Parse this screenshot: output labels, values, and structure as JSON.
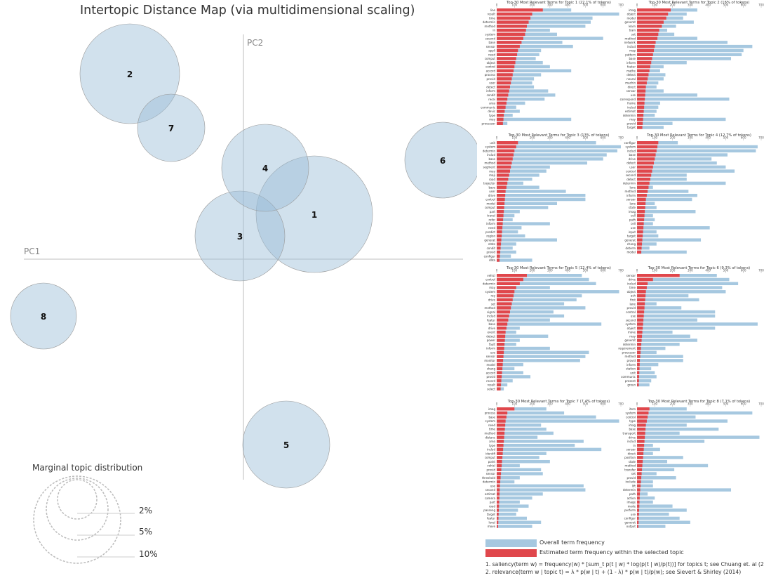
{
  "mds": {
    "title": "Intertopic Distance Map (via multidimensional scaling)",
    "pc1_label": "PC1",
    "pc2_label": "PC2",
    "marginal_title": "Marginal topic distribution",
    "marginal_levels": [
      "2%",
      "5%",
      "10%"
    ]
  },
  "chart_data": [
    {
      "type": "scatter",
      "title": "Intertopic Distance Map (via multidimensional scaling)",
      "xlabel": "PC1",
      "ylabel": "PC2",
      "topics": [
        {
          "label": "1",
          "share_pct": 22.1
        },
        {
          "label": "2",
          "share_pct": 16
        },
        {
          "label": "3",
          "share_pct": 13
        },
        {
          "label": "4",
          "share_pct": 12.7
        },
        {
          "label": "5",
          "share_pct": 12.4
        },
        {
          "label": "6",
          "share_pct": 9.3
        },
        {
          "label": "7",
          "share_pct": 7.4
        },
        {
          "label": "8",
          "share_pct": 7.1
        }
      ]
    },
    {
      "type": "bar",
      "orientation": "horizontal",
      "title": "Top-30 Most Relevant Terms for Topic 1 (22.1% of tokens)",
      "xlim": [
        0,
        700
      ],
      "xticks": [
        0,
        100,
        200,
        300,
        400,
        500,
        600,
        700
      ],
      "terms": [
        "line",
        "result",
        "time",
        "determin",
        "method",
        "in",
        "system",
        "second",
        "base",
        "sensor",
        "appli",
        "need",
        "comput",
        "object",
        "control",
        "accord",
        "process",
        "provid",
        "user",
        "detect",
        "inform",
        "condit",
        "recei",
        "area",
        "communic",
        "devic",
        "type",
        "may",
        "processor"
      ],
      "overall": [
        420,
        690,
        540,
        530,
        500,
        300,
        340,
        600,
        370,
        430,
        250,
        240,
        220,
        260,
        300,
        420,
        250,
        210,
        200,
        210,
        290,
        330,
        270,
        160,
        110,
        130,
        90,
        420,
        60
      ],
      "estimated": [
        260,
        200,
        190,
        180,
        170,
        165,
        160,
        150,
        140,
        130,
        120,
        115,
        110,
        105,
        100,
        95,
        90,
        85,
        80,
        75,
        70,
        65,
        60,
        55,
        50,
        45,
        40,
        38,
        35
      ]
    },
    {
      "type": "bar",
      "orientation": "horizontal",
      "title": "Top-30 Most Relevant Terms for Topic 2 (16% of tokens)",
      "xlim": [
        0,
        700
      ],
      "xticks": [
        0,
        100,
        200,
        300,
        400,
        500,
        600,
        700
      ],
      "terms": [
        "imag",
        "object",
        "model",
        "generat",
        "learn",
        "train",
        "set",
        "method",
        "network",
        "includ",
        "map",
        "pattern",
        "base",
        "inform",
        "featur",
        "mathe",
        "detect",
        "neural",
        "machin",
        "direct",
        "sensor",
        "use",
        "correspond",
        "frame",
        "includ",
        "estimat",
        "determin",
        "may",
        "provid",
        "target"
      ],
      "overall": [
        340,
        280,
        260,
        320,
        220,
        170,
        210,
        340,
        510,
        650,
        600,
        590,
        530,
        280,
        150,
        130,
        160,
        150,
        120,
        110,
        150,
        340,
        520,
        130,
        120,
        110,
        100,
        500,
        200,
        150
      ],
      "estimated": [
        190,
        175,
        165,
        150,
        140,
        125,
        120,
        115,
        105,
        100,
        95,
        90,
        85,
        80,
        75,
        70,
        65,
        60,
        55,
        50,
        48,
        46,
        44,
        42,
        40,
        38,
        36,
        34,
        32,
        30
      ]
    },
    {
      "type": "bar",
      "orientation": "horizontal",
      "title": "Top-30 Most Relevant Terms for Topic 3 (13% of tokens)",
      "xlim": [
        0,
        700
      ],
      "xticks": [
        0,
        100,
        200,
        300,
        400,
        500,
        600,
        700
      ],
      "terms": [
        "unit",
        "system",
        "determin",
        "includ",
        "base",
        "method",
        "segment",
        "may",
        "map",
        "road",
        "trajector",
        "base",
        "user",
        "drive",
        "control",
        "model",
        "comput",
        "part",
        "travel",
        "refer",
        "inform",
        "need",
        "predict",
        "region",
        "generat",
        "state",
        "condit",
        "provid",
        "configur",
        "data"
      ],
      "overall": [
        560,
        700,
        680,
        620,
        600,
        510,
        300,
        280,
        240,
        200,
        150,
        240,
        390,
        500,
        500,
        340,
        290,
        130,
        100,
        90,
        300,
        140,
        120,
        160,
        340,
        110,
        90,
        110,
        80,
        200
      ],
      "estimated": [
        120,
        110,
        100,
        95,
        90,
        85,
        80,
        75,
        70,
        65,
        60,
        55,
        50,
        48,
        46,
        44,
        42,
        40,
        38,
        36,
        34,
        32,
        30,
        28,
        26,
        24,
        22,
        20,
        18,
        16
      ]
    },
    {
      "type": "bar",
      "orientation": "horizontal",
      "title": "Top-30 Most Relevant Terms for Topic 4 (12.7% of tokens)",
      "xlim": [
        0,
        700
      ],
      "xticks": [
        0,
        100,
        200,
        300,
        400,
        500,
        600,
        700
      ],
      "terms": [
        "configur",
        "system",
        "includ",
        "base",
        "drive",
        "detect",
        "user",
        "control",
        "second",
        "detect",
        "determin",
        "lane",
        "method",
        "inform",
        "sensor",
        "lane",
        "state",
        "imag",
        "cell",
        "path",
        "cell",
        "use",
        "input",
        "target",
        "generat",
        "chang",
        "determ",
        "model"
      ],
      "overall": [
        230,
        680,
        670,
        510,
        420,
        450,
        500,
        550,
        280,
        280,
        500,
        90,
        290,
        340,
        310,
        100,
        110,
        330,
        90,
        100,
        90,
        410,
        110,
        120,
        360,
        110,
        70,
        280
      ],
      "estimated": [
        120,
        115,
        110,
        105,
        100,
        95,
        90,
        85,
        80,
        75,
        70,
        65,
        60,
        55,
        50,
        48,
        46,
        44,
        42,
        40,
        38,
        36,
        34,
        32,
        30,
        28,
        26,
        24
      ]
    },
    {
      "type": "bar",
      "orientation": "horizontal",
      "title": "Top-30 Most Relevant Terms for Topic 5 (12.4% of tokens)",
      "xlim": [
        0,
        700
      ],
      "xticks": [
        0,
        100,
        200,
        300,
        400,
        500,
        600,
        700
      ],
      "terms": [
        "vehicl",
        "control",
        "determin",
        "may",
        "system",
        "ray",
        "drive",
        "set",
        "method",
        "signal",
        "includ",
        "featur",
        "base",
        "drive",
        "event",
        "detect",
        "power",
        "fault",
        "inform",
        "use",
        "sensor",
        "monitor",
        "model",
        "chang",
        "accord",
        "provid",
        "record",
        "result",
        "select"
      ],
      "overall": [
        480,
        520,
        560,
        300,
        690,
        480,
        450,
        380,
        500,
        320,
        380,
        300,
        590,
        130,
        110,
        290,
        130,
        110,
        300,
        520,
        500,
        470,
        150,
        100,
        150,
        190,
        90,
        60,
        40
      ],
      "estimated": [
        170,
        150,
        130,
        110,
        100,
        95,
        90,
        85,
        80,
        75,
        70,
        65,
        60,
        55,
        50,
        48,
        46,
        44,
        42,
        40,
        38,
        36,
        34,
        32,
        30,
        28,
        26,
        24,
        22
      ]
    },
    {
      "type": "bar",
      "orientation": "horizontal",
      "title": "Top-30 Most Relevant Terms for Topic 6 (9.3% of tokens)",
      "xlim": [
        0,
        700
      ],
      "xticks": [
        0,
        100,
        200,
        300,
        400,
        500,
        600,
        700
      ],
      "terms": [
        "sensor",
        "drive",
        "includ",
        "time",
        "object",
        "ash",
        "first",
        "lane",
        "provid",
        "control",
        "use",
        "second",
        "system",
        "object",
        "move",
        "may",
        "generat",
        "determin",
        "requirement",
        "processor",
        "method",
        "provid",
        "inform",
        "station",
        "unit",
        "communic",
        "present",
        "groun"
      ],
      "overall": [
        450,
        520,
        570,
        480,
        500,
        290,
        350,
        110,
        250,
        440,
        440,
        340,
        680,
        440,
        200,
        300,
        340,
        240,
        160,
        110,
        260,
        260,
        120,
        80,
        100,
        110,
        80,
        70
      ],
      "estimated": [
        240,
        90,
        60,
        55,
        50,
        48,
        46,
        44,
        42,
        40,
        38,
        36,
        34,
        32,
        30,
        28,
        26,
        24,
        22,
        20,
        18,
        16,
        15,
        14,
        13,
        12,
        11,
        10
      ]
    },
    {
      "type": "bar",
      "orientation": "horizontal",
      "title": "Top-30 Most Relevant Terms for Topic 7 (7.4% of tokens)",
      "xlim": [
        0,
        700
      ],
      "xticks": [
        0,
        100,
        200,
        300,
        400,
        500,
        600,
        700
      ],
      "terms": [
        "imag",
        "process",
        "base",
        "system",
        "need",
        "time",
        "method",
        "distanc",
        "area",
        "type",
        "includ",
        "identifi",
        "comput",
        "point",
        "vehicl",
        "provid",
        "sensor",
        "threshold",
        "determin",
        "use",
        "second",
        "estimat",
        "camera",
        "part",
        "road",
        "passeng",
        "target",
        "featur",
        "level",
        "move"
      ],
      "overall": [
        280,
        380,
        560,
        690,
        250,
        280,
        320,
        230,
        490,
        440,
        590,
        280,
        240,
        300,
        130,
        250,
        260,
        130,
        100,
        490,
        500,
        260,
        200,
        130,
        180,
        120,
        110,
        170,
        250,
        200
      ],
      "estimated": [
        100,
        60,
        55,
        50,
        48,
        46,
        44,
        42,
        40,
        38,
        36,
        34,
        32,
        30,
        28,
        26,
        24,
        22,
        20,
        18,
        17,
        16,
        15,
        14,
        13,
        12,
        11,
        10,
        9,
        8
      ]
    },
    {
      "type": "bar",
      "orientation": "horizontal",
      "title": "Top-30 Most Relevant Terms for Topic 8 (7.1% of tokens)",
      "xlim": [
        0,
        700
      ],
      "xticks": [
        0,
        100,
        200,
        300,
        400,
        500,
        600,
        700
      ],
      "terms": [
        "item",
        "system",
        "control",
        "type",
        "imag",
        "base",
        "transport",
        "drive",
        "includ",
        "in",
        "sensor",
        "direct",
        "position",
        "state",
        "method",
        "transfer",
        "set",
        "provid",
        "include",
        "lift",
        "determin",
        "path",
        "action",
        "image",
        "mode",
        "perform",
        "use",
        "configur",
        "generat",
        "output"
      ],
      "overall": [
        280,
        650,
        330,
        510,
        280,
        460,
        240,
        690,
        380,
        90,
        130,
        90,
        260,
        170,
        400,
        210,
        110,
        220,
        90,
        90,
        530,
        60,
        100,
        90,
        200,
        280,
        180,
        240,
        300,
        160
      ],
      "estimated": [
        70,
        65,
        60,
        55,
        50,
        48,
        46,
        44,
        42,
        40,
        38,
        36,
        34,
        32,
        30,
        28,
        26,
        24,
        22,
        20,
        18,
        16,
        15,
        14,
        13,
        12,
        11,
        10,
        9,
        8
      ]
    }
  ],
  "legend": {
    "overall_label": "Overall term frequency",
    "estimated_label": "Estimated term frequency within the selected topic",
    "overall_color": "#a6c8e0",
    "estimated_color": "#e0474c"
  },
  "footnotes": {
    "line1": "1. saliency(term w) = frequency(w) * [sum_t p(t | w) * log(p(t | w)/p(t))] for topics t; see Chuang et. al (2012)",
    "line2": "2. relevance(term w | topic t) = λ * p(w | t) + (1 - λ) * p(w | t)/p(w); see Sievert & Shirley (2014)"
  }
}
